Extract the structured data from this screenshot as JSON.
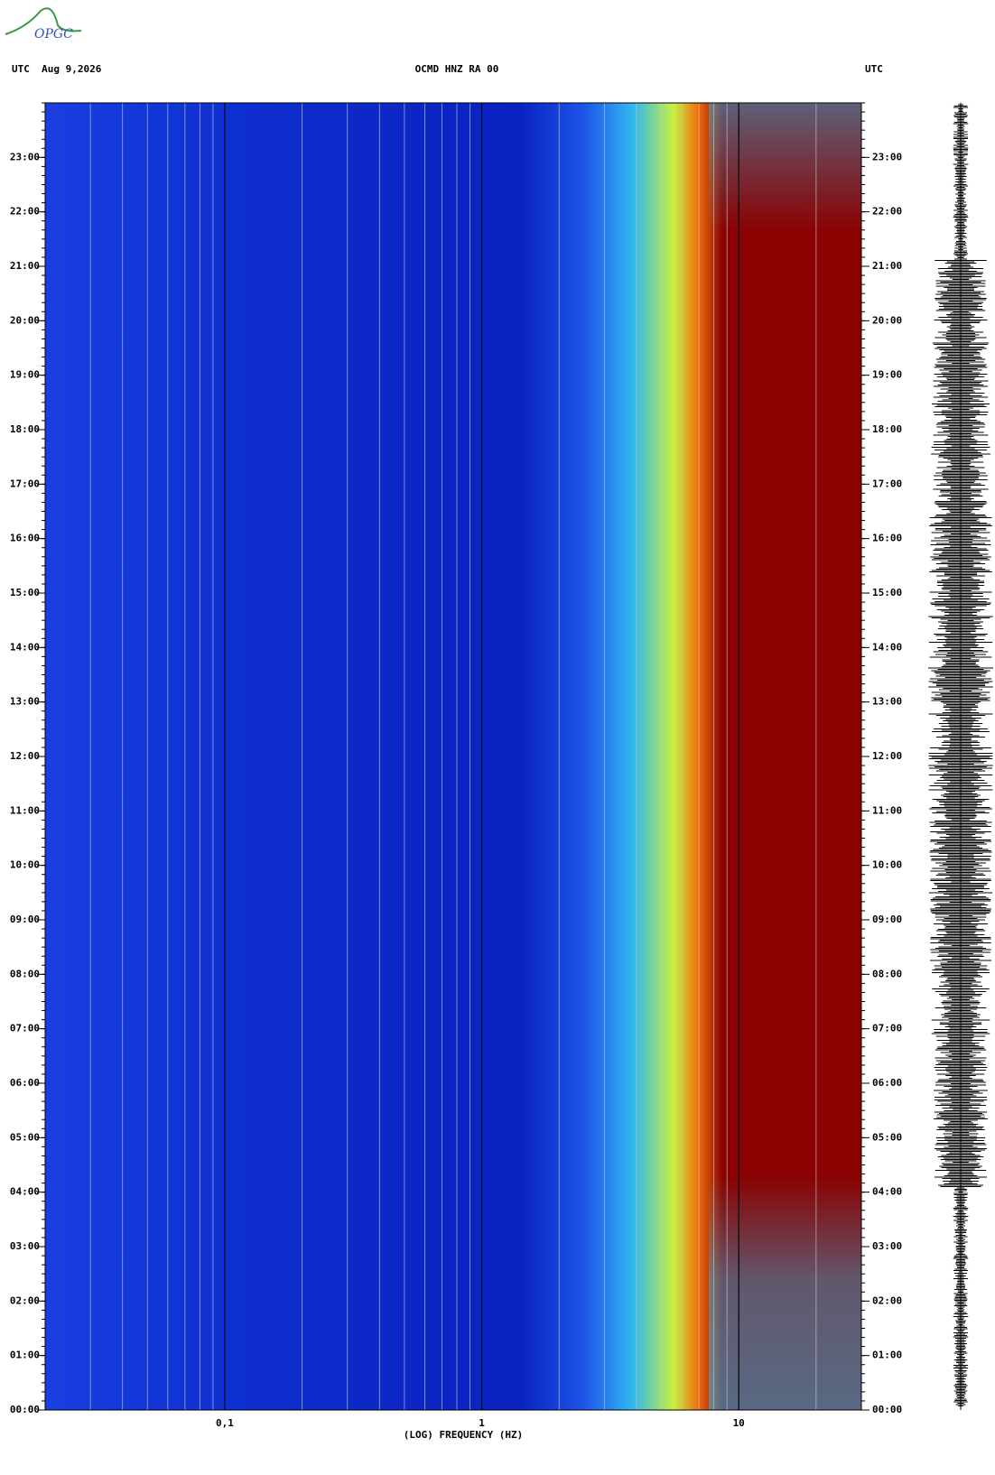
{
  "chart_data": {
    "type": "spectrogram",
    "logo": "OPGC",
    "title": "OCMD HNZ RA 00",
    "date_label": "UTC  Aug 9,2026",
    "right_label": "UTC",
    "xlabel": "(LOG) FREQUENCY (HZ)",
    "xscale": "log",
    "xlim": [
      0.02,
      30
    ],
    "xticks": [
      {
        "value": 0.1,
        "label": "0,1"
      },
      1,
      10
    ],
    "ylim": [
      0,
      24
    ],
    "yticks": [
      {
        "value": 0,
        "label": "00:00"
      },
      {
        "value": 1,
        "label": "01:00"
      },
      {
        "value": 2,
        "label": "02:00"
      },
      {
        "value": 3,
        "label": "03:00"
      },
      {
        "value": 4,
        "label": "04:00"
      },
      {
        "value": 5,
        "label": "05:00"
      },
      {
        "value": 6,
        "label": "06:00"
      },
      {
        "value": 7,
        "label": "07:00"
      },
      {
        "value": 8,
        "label": "08:00"
      },
      {
        "value": 9,
        "label": "09:00"
      },
      {
        "value": 10,
        "label": "10:00"
      },
      {
        "value": 11,
        "label": "11:00"
      },
      {
        "value": 12,
        "label": "12:00"
      },
      {
        "value": 13,
        "label": "13:00"
      },
      {
        "value": 14,
        "label": "14:00"
      },
      {
        "value": 15,
        "label": "15:00"
      },
      {
        "value": 16,
        "label": "16:00"
      },
      {
        "value": 17,
        "label": "17:00"
      },
      {
        "value": 18,
        "label": "18:00"
      },
      {
        "value": 19,
        "label": "19:00"
      },
      {
        "value": 20,
        "label": "20:00"
      },
      {
        "value": 21,
        "label": "21:00"
      },
      {
        "value": 22,
        "label": "22:00"
      },
      {
        "value": 23,
        "label": "23:00"
      }
    ]
  }
}
